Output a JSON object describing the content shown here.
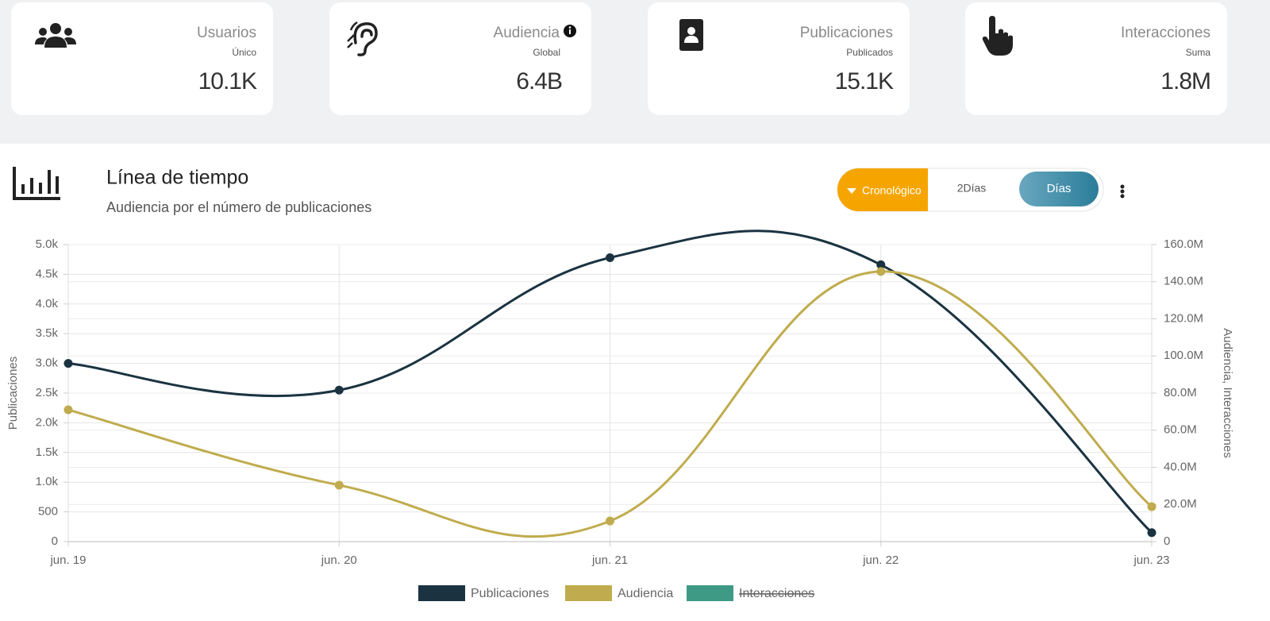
{
  "cards": [
    {
      "label": "Usuarios",
      "sublabel": "Único",
      "value": "10.1K"
    },
    {
      "label": "Audiencia",
      "sublabel": "Global",
      "value": "6.4B"
    },
    {
      "label": "Publicaciones",
      "sublabel": "Publicados",
      "value": "15.1K"
    },
    {
      "label": "Interacciones",
      "sublabel": "Suma",
      "value": "1.8M"
    }
  ],
  "chart_header": {
    "title": "Línea de tiempo",
    "subtitle": "Audiencia por el número de publicaciones"
  },
  "toggle": {
    "options": [
      "Cronológico",
      "2Días",
      "Días"
    ]
  },
  "chart_data": {
    "type": "line",
    "y_label": "Publicaciones",
    "y2_label": "Audiencia, Interacciones",
    "categories": [
      "jun. 19",
      "jun. 20",
      "jun. 21",
      "jun. 22",
      "jun. 23"
    ],
    "series": [
      {
        "name": "Publicaciones",
        "color": "#1b3341",
        "values": [
          3000,
          2550,
          4780,
          4660,
          150
        ]
      },
      {
        "name": "Audiencia",
        "color": "#c0ac4e",
        "axis": "y2",
        "values": [
          71000000,
          30400000,
          11100000,
          145500000,
          18800000
        ]
      },
      {
        "name": "Interacciones",
        "color": "#3f9a85",
        "axis": "y2",
        "hidden": true,
        "values": [
          null,
          null,
          null,
          null,
          null
        ]
      }
    ],
    "ylim": [
      0,
      5000
    ],
    "yticks": [
      0,
      500,
      {
        "value": 1000,
        "label": "1.0k"
      },
      {
        "value": 1500,
        "label": "1.5k"
      },
      {
        "value": 2000,
        "label": "2.0k"
      },
      {
        "value": 2500,
        "label": "2.5k"
      },
      {
        "value": 3000,
        "label": "3.0k"
      },
      {
        "value": 3500,
        "label": "3.5k"
      },
      {
        "value": 4000,
        "label": "4.0k"
      },
      {
        "value": 4500,
        "label": "4.5k"
      },
      {
        "value": 5000,
        "label": "5.0k"
      }
    ],
    "y2lim": [
      0,
      160000000
    ],
    "y2ticks": [
      0,
      {
        "value": 20000000,
        "label": "20.0M"
      },
      {
        "value": 40000000,
        "label": "40.0M"
      },
      {
        "value": 60000000,
        "label": "60.0M"
      },
      {
        "value": 80000000,
        "label": "80.0M"
      },
      {
        "value": 100000000,
        "label": "100.0M"
      },
      {
        "value": 120000000,
        "label": "120.0M"
      },
      {
        "value": 140000000,
        "label": "140.0M"
      },
      {
        "value": 160000000,
        "label": "160.0M"
      }
    ],
    "grid": true
  }
}
